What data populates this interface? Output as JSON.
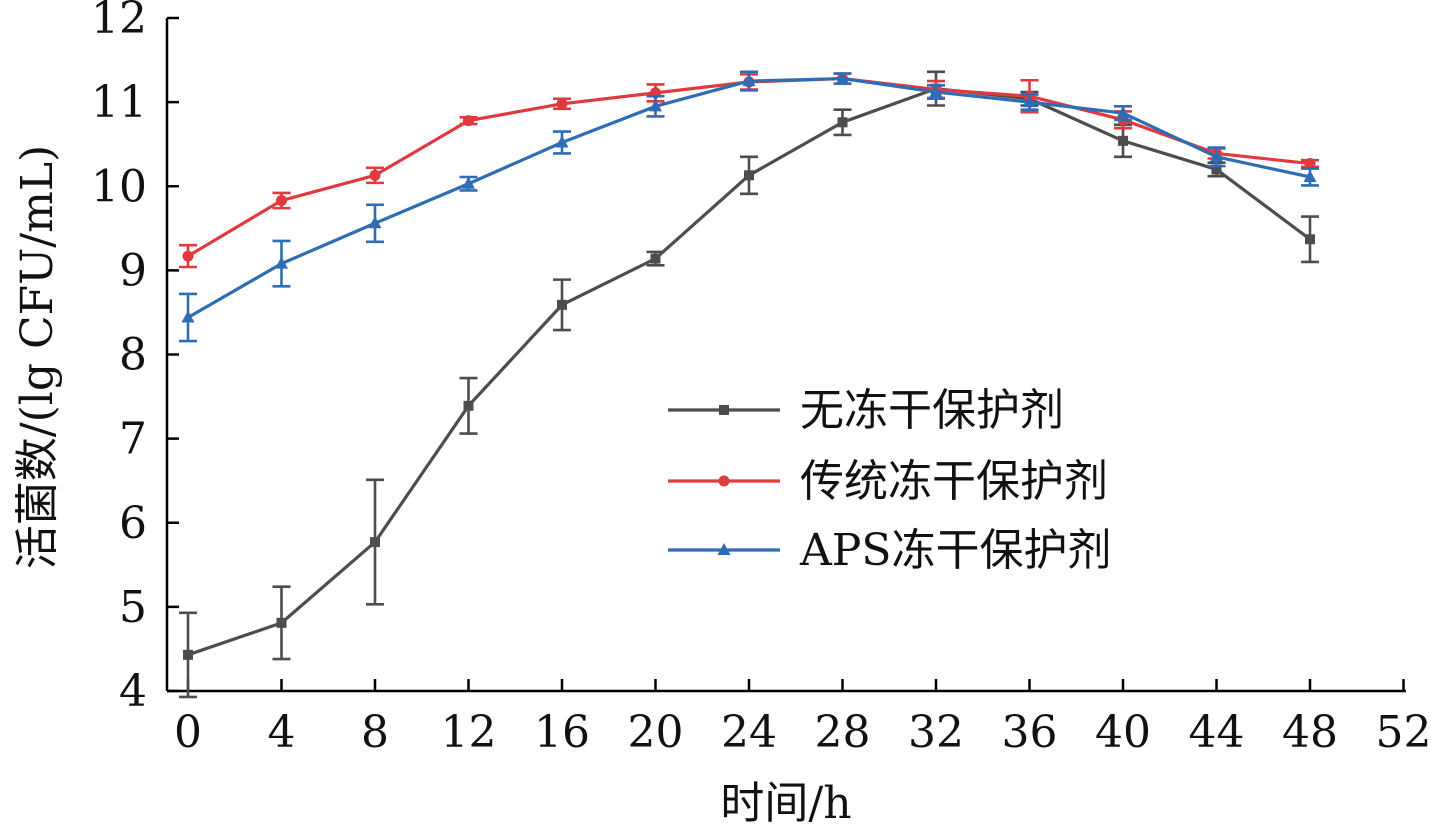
{
  "chart_data": {
    "type": "line",
    "xlabel": "时间/h",
    "ylabel": "活菌数/(lg CFU/mL)",
    "xlim": [
      0,
      52
    ],
    "ylim": [
      4,
      12
    ],
    "xticks": [
      0,
      4,
      8,
      12,
      16,
      20,
      24,
      28,
      32,
      36,
      40,
      44,
      48,
      52
    ],
    "yticks": [
      4,
      5,
      6,
      7,
      8,
      9,
      10,
      11,
      12
    ],
    "grid": false,
    "legend_position": "center-right",
    "x": [
      0,
      4,
      8,
      12,
      16,
      20,
      24,
      28,
      32,
      36,
      40,
      44,
      48
    ],
    "series": [
      {
        "name": "无冻干保护剂",
        "color": "#4d4d4d",
        "marker": "square",
        "values": [
          4.43,
          4.81,
          5.77,
          7.39,
          8.59,
          9.14,
          10.13,
          10.76,
          11.16,
          11.04,
          10.54,
          10.2,
          9.37
        ],
        "errors": [
          0.5,
          0.43,
          0.74,
          0.33,
          0.3,
          0.08,
          0.22,
          0.15,
          0.2,
          0.08,
          0.19,
          0.08,
          0.27
        ]
      },
      {
        "name": "传统冻干保护剂",
        "color": "#e0393e",
        "marker": "circle",
        "values": [
          9.17,
          9.83,
          10.13,
          10.78,
          10.98,
          11.11,
          11.24,
          11.28,
          11.15,
          11.07,
          10.79,
          10.39,
          10.27
        ],
        "errors": [
          0.13,
          0.09,
          0.09,
          0.04,
          0.06,
          0.1,
          0.09,
          0.06,
          0.1,
          0.19,
          0.1,
          0.06,
          0.04
        ]
      },
      {
        "name": "APS冻干保护剂",
        "color": "#2e6db4",
        "marker": "triangle",
        "values": [
          8.44,
          9.08,
          9.56,
          10.03,
          10.52,
          10.95,
          11.25,
          11.28,
          11.12,
          11.0,
          10.87,
          10.35,
          10.11
        ],
        "errors": [
          0.28,
          0.27,
          0.22,
          0.08,
          0.13,
          0.12,
          0.11,
          0.06,
          0.08,
          0.09,
          0.08,
          0.11,
          0.1
        ]
      }
    ]
  }
}
